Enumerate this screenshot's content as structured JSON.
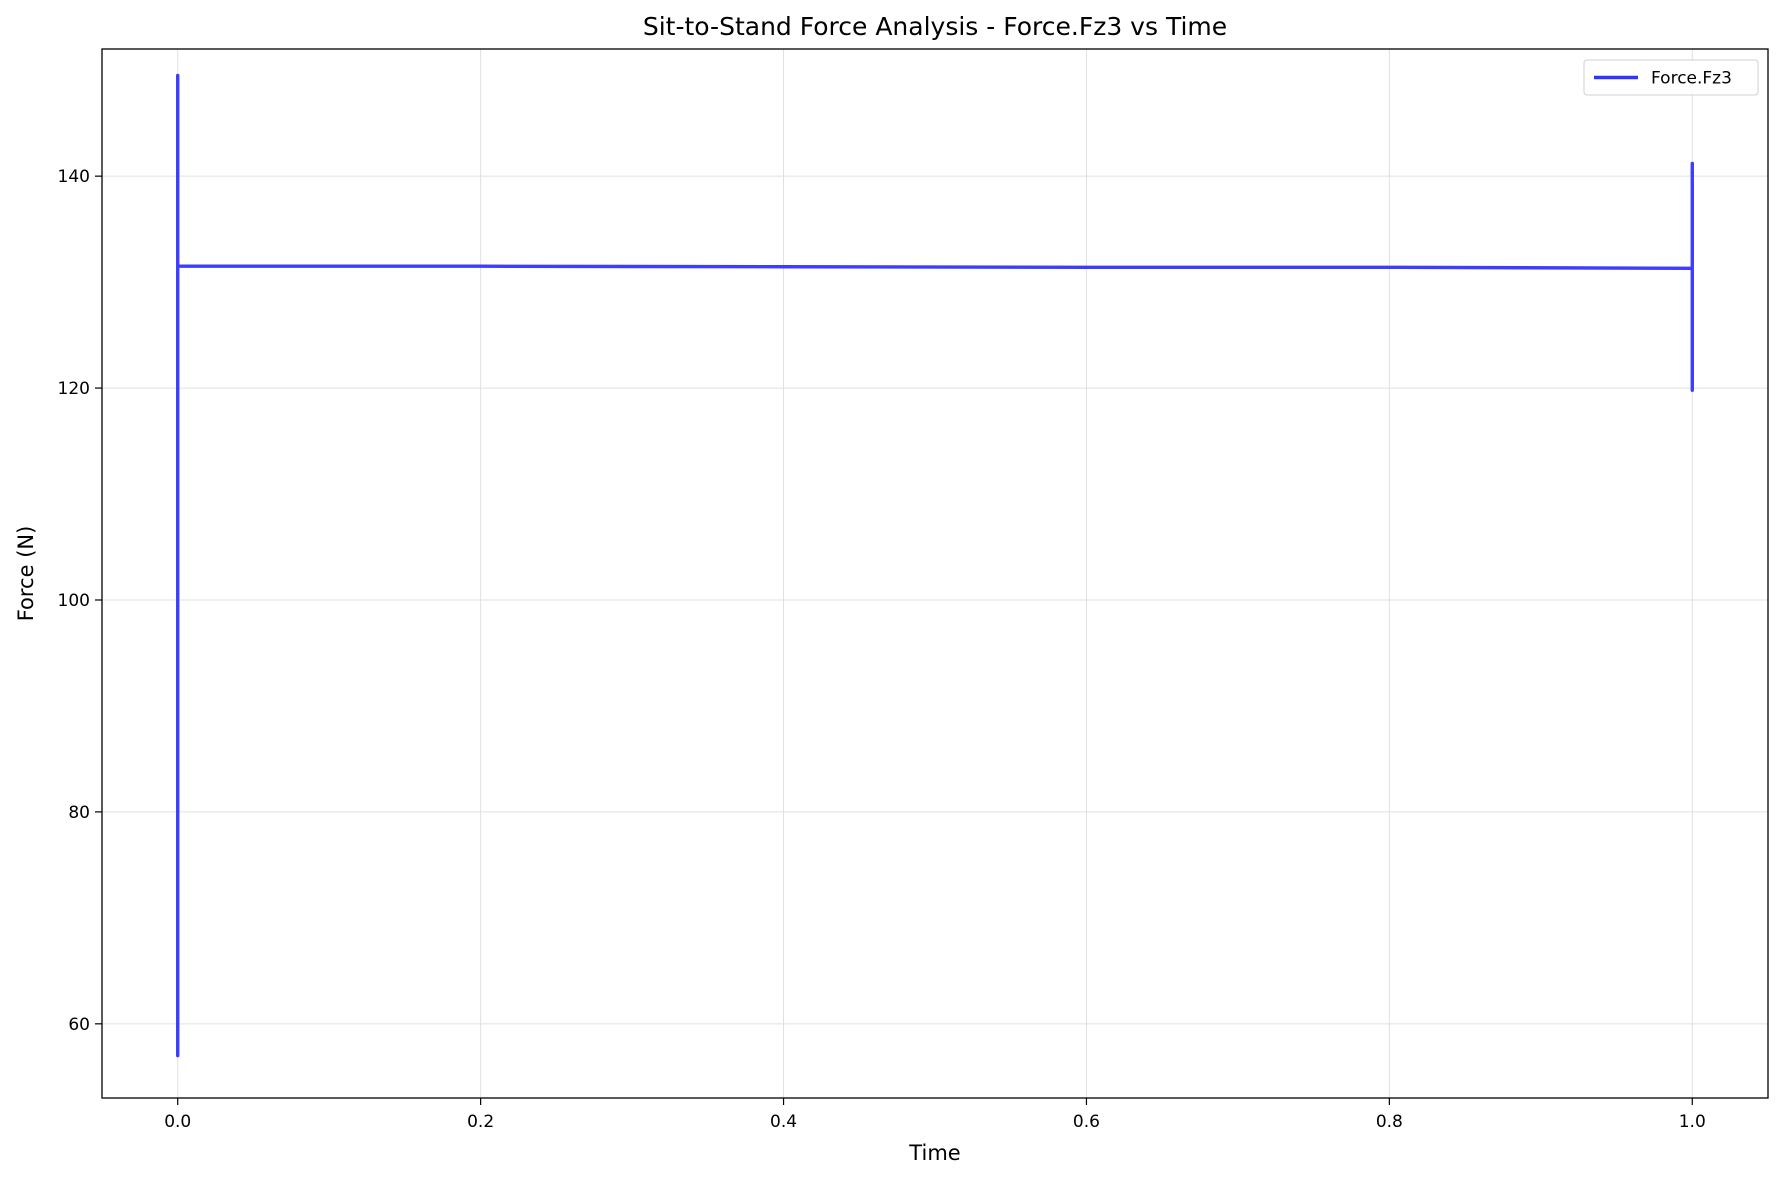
{
  "chart_data": {
    "type": "line",
    "title": "Sit-to-Stand Force Analysis - Force.Fz3 vs Time",
    "xlabel": "Time",
    "ylabel": "Force (N)",
    "xlim": [
      -0.05,
      1.05
    ],
    "ylim": [
      53,
      152
    ],
    "x_ticks": [
      0.0,
      0.2,
      0.4,
      0.6,
      0.8,
      1.0
    ],
    "x_tick_labels": [
      "0.0",
      "0.2",
      "0.4",
      "0.6",
      "0.8",
      "1.0"
    ],
    "y_ticks": [
      60,
      80,
      100,
      120,
      140
    ],
    "y_tick_labels": [
      "60",
      "80",
      "100",
      "120",
      "140"
    ],
    "grid": true,
    "legend_position": "top-right",
    "series": [
      {
        "name": "Force.Fz3",
        "color": "#3333ff",
        "x": [
          0.0,
          0.0,
          0.0,
          0.0,
          0.0,
          0.001,
          0.2,
          0.4,
          0.6,
          0.8,
          1.0,
          1.0,
          1.0,
          1.0,
          1.0,
          1.0
        ],
        "y": [
          57.0,
          132.0,
          149.5,
          135.0,
          131.5,
          131.5,
          131.5,
          131.45,
          131.4,
          131.4,
          131.3,
          119.8,
          141.2,
          136.0,
          135.5,
          131.3
        ]
      }
    ]
  }
}
